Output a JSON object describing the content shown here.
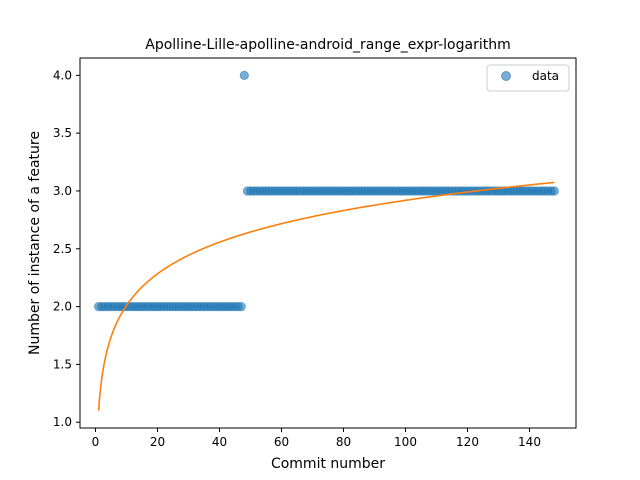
{
  "chart_data": {
    "type": "scatter",
    "title": "Apolline-Lille-apolline-android_range_expr-logarithm",
    "xlabel": "Commit number",
    "ylabel": "Number of instance of a feature",
    "xlim": [
      -5,
      155
    ],
    "ylim": [
      0.95,
      4.15
    ],
    "xticks": [
      0,
      20,
      40,
      60,
      80,
      100,
      120,
      140
    ],
    "yticks": [
      1.0,
      1.5,
      2.0,
      2.5,
      3.0,
      3.5,
      4.0
    ],
    "ytick_labels": [
      "1.0",
      "1.5",
      "2.0",
      "2.5",
      "3.0",
      "3.5",
      "4.0"
    ],
    "legend": {
      "entries": [
        "data"
      ],
      "placement": "top-right"
    },
    "grid": false,
    "colors": {
      "data": "#1f77b4",
      "fit": "#ff7f0e"
    },
    "series": [
      {
        "name": "data",
        "kind": "scatter",
        "segments": [
          {
            "x_from": 1,
            "x_to": 47,
            "y": 2.0
          },
          {
            "x": 48,
            "y": 4.0
          },
          {
            "x_from": 49,
            "x_to": 148,
            "y": 3.0
          }
        ]
      },
      {
        "kind": "line",
        "function": "logarithm",
        "a": 1.1,
        "b": 0.395,
        "x_from": 1,
        "x_to": 148
      }
    ]
  }
}
